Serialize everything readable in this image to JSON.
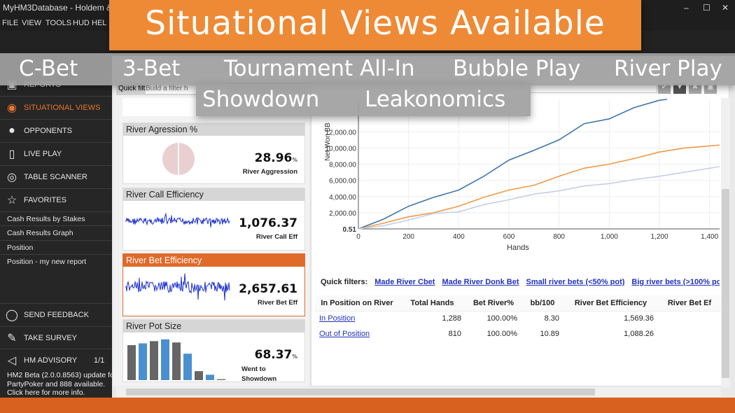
{
  "window": {
    "title": "MyHM3Database - Holdem & Oma",
    "minimize": "–",
    "maximize": "☐",
    "close": "✕"
  },
  "menu": [
    "FILE",
    "VIEW",
    "TOOLS",
    "HUD",
    "HEL"
  ],
  "overlay": {
    "headline": "Situational Views Available",
    "tags": [
      "C-Bet",
      "3-Bet",
      "Tournament All-In",
      "Bubble Play",
      "River Play",
      "Showdown",
      "Leakonomics"
    ]
  },
  "sidebar": {
    "items": [
      {
        "label": "REPORTS",
        "icon": "reports-icon"
      },
      {
        "label": "SITUATIONAL VIEWS",
        "icon": "eye-icon",
        "active": true
      },
      {
        "label": "OPPONENTS",
        "icon": "user-icon"
      },
      {
        "label": "LIVE PLAY",
        "icon": "play-icon"
      },
      {
        "label": "TABLE SCANNER",
        "icon": "radar-icon"
      },
      {
        "label": "FAVORITES",
        "icon": "star-icon"
      }
    ],
    "favorites": [
      "Cash Results by Stakes",
      "Cash Results Graph",
      "Position",
      "Position - my new report"
    ],
    "bottom": [
      {
        "label": "SEND FEEDBACK",
        "icon": "speech-bubble-icon"
      },
      {
        "label": "TAKE SURVEY",
        "icon": "edit-icon"
      },
      {
        "label": "HM ADVISORY",
        "icon": "megaphone-icon",
        "count": "1/1"
      }
    ],
    "advisory_note": [
      "HM2 Beta (2.0.0.8563)  update for",
      "PartyPoker and 888 available.",
      "Click here for more info."
    ]
  },
  "filter": {
    "label": "Quick filt",
    "placeholder": "Build a filter h"
  },
  "cards": [
    {
      "title": "River Agression %",
      "value": "28.96",
      "unit": "%",
      "caption": "River Aggression"
    },
    {
      "title": "River Call Efficiency",
      "value": "1,076.37",
      "caption": "River Call Eff"
    },
    {
      "title": "River Bet Efficiency",
      "value": "2,657.61",
      "caption": "River Bet Eff",
      "selected": true
    },
    {
      "title": "River Pot Size",
      "value": "68.37",
      "unit": "%",
      "caption": "Went to Showdown",
      "bars": [
        0.78,
        0.82,
        0.87,
        0.91,
        0.84,
        0.59,
        0.2,
        0.12,
        0.02
      ]
    }
  ],
  "accent": "#e06a2a",
  "chart_data": {
    "type": "line",
    "xlabel": "Hands",
    "ylabel": "Net Won BB",
    "xlim": [
      0,
      1440
    ],
    "ylim": [
      0.51,
      16000
    ],
    "xticks": [
      "0",
      "200",
      "400",
      "600",
      "800",
      "1,000",
      "1,200",
      "1,400"
    ],
    "yticks": [
      "0.51",
      "2,000.00",
      "4,000.00",
      "6,000.00",
      "8,000.00",
      "10,000.00",
      "12,000.00"
    ],
    "grid": true,
    "series": [
      {
        "color": "#3f76ad",
        "x": [
          0,
          100,
          200,
          300,
          400,
          500,
          600,
          700,
          800,
          900,
          1000,
          1100,
          1200,
          1230
        ],
        "y": [
          0.51,
          1200,
          2800,
          3900,
          4800,
          6500,
          8500,
          9700,
          11000,
          13000,
          13600,
          15000,
          15900,
          16000
        ]
      },
      {
        "color": "#ef9a45",
        "x": [
          0,
          100,
          200,
          300,
          400,
          500,
          600,
          700,
          800,
          900,
          1000,
          1100,
          1200,
          1300,
          1440
        ],
        "y": [
          0.51,
          700,
          1500,
          2000,
          2800,
          3900,
          4800,
          5400,
          6500,
          7500,
          8000,
          8700,
          9500,
          10000,
          10350
        ]
      },
      {
        "color": "#c5d0e6",
        "x": [
          0,
          100,
          200,
          300,
          400,
          500,
          600,
          700,
          800,
          900,
          1000,
          1100,
          1200,
          1300,
          1440
        ],
        "y": [
          0.51,
          400,
          1100,
          1900,
          2100,
          3000,
          3600,
          4300,
          4700,
          5300,
          5600,
          6100,
          6500,
          7000,
          7700
        ]
      }
    ]
  },
  "quick_filters": {
    "label": "Quick filters:",
    "links": [
      "Made River Cbet",
      "Made River Donk Bet",
      "Small river bets (<50% pot)",
      "Big river bets (>100% po"
    ]
  },
  "table": {
    "columns": [
      "In Position on River",
      "Total Hands",
      "Bet River%",
      "bb/100",
      "River Bet Efficiency",
      "River Bet Ef"
    ],
    "rows": [
      [
        "In Position",
        "1,288",
        "100.00%",
        "8.30",
        "1,569.36",
        ""
      ],
      [
        "Out of Position",
        "810",
        "100.00%",
        "10.89",
        "1,088.26",
        ""
      ]
    ]
  }
}
